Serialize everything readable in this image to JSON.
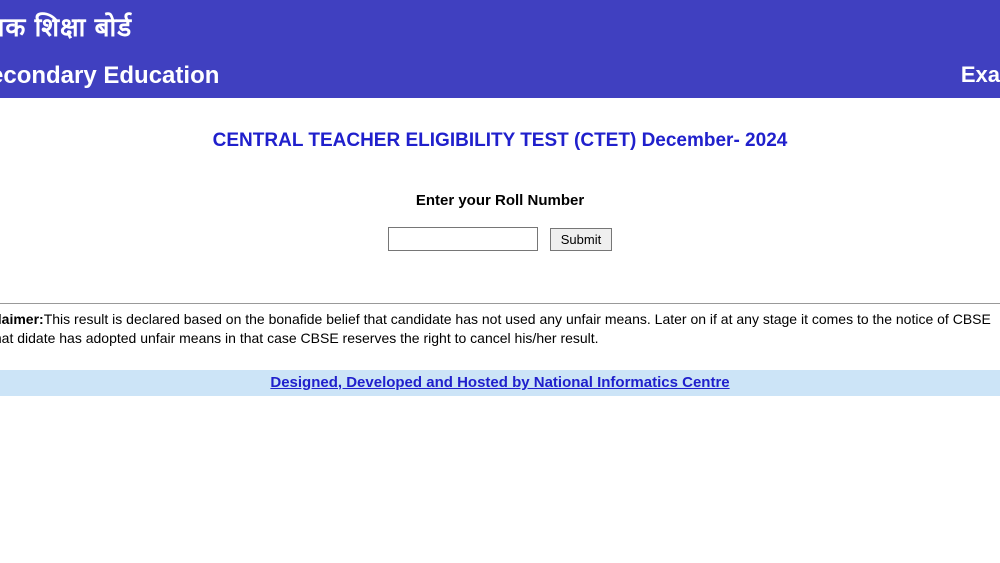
{
  "header": {
    "hindi_text": "नक शिक्षा बोर्ड",
    "english_text": "econdary Education",
    "right_text": "Exa"
  },
  "main": {
    "title": "CENTRAL TEACHER ELIGIBILITY TEST (CTET) December- 2024",
    "form_label": "Enter your Roll Number",
    "submit_label": "Submit",
    "roll_value": ""
  },
  "disclaimer": {
    "label": "claimer:",
    "text": "This result is declared based on the bonafide belief that candidate has not used any unfair means. Later on if at any stage it comes to the notice of CBSE that didate has adopted unfair means in that case CBSE reserves the right to cancel his/her result."
  },
  "footer": {
    "link_text": "Designed, Developed and Hosted by National Informatics Centre"
  },
  "colors": {
    "header_bg": "#4040c0",
    "title_color": "#2020cc",
    "footer_bg": "#cce4f7",
    "link_color": "#2020cc"
  }
}
